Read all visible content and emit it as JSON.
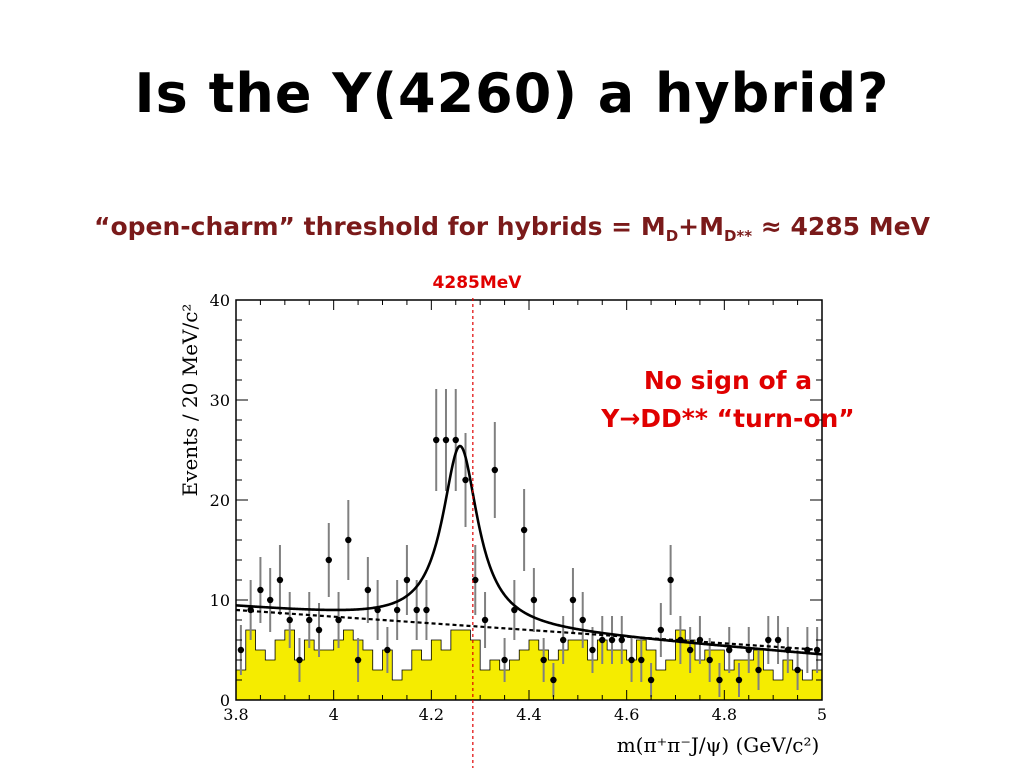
{
  "slide": {
    "title": "Is the Y(4260) a hybrid?",
    "subtitle_prefix": "“open-charm” threshold for hybrids = M",
    "subtitle_sub1": "D",
    "subtitle_mid": "+M",
    "subtitle_sub2": "D**",
    "subtitle_suffix": " ≈ 4285 MeV",
    "threshold_label": "4285MeV",
    "note_line1": "No sign of a",
    "note_line2": "Y→DD** “turn-on”"
  },
  "colors": {
    "threshold": "#e00000",
    "histogram_fill": "#f5ec00",
    "title_subtitle": "#7a1a1a",
    "errorbar": "#808080"
  },
  "chart_data": {
    "type": "scatter",
    "xlabel": "m(π⁺π⁻J/ψ) (GeV/c²)",
    "ylabel": "Events / 20 MeV/c²",
    "xlim": [
      3.8,
      5.0
    ],
    "ylim": [
      0,
      40
    ],
    "x_ticks": [
      "3.8",
      "4",
      "4.2",
      "4.4",
      "4.6",
      "4.8",
      "5"
    ],
    "y_ticks": [
      "0",
      "10",
      "20",
      "30",
      "40"
    ],
    "threshold_x": 4.285,
    "series": [
      {
        "kind": "data_points_with_errors",
        "points": [
          {
            "x": 3.81,
            "y": 5,
            "e": 2.5
          },
          {
            "x": 3.83,
            "y": 9,
            "e": 3
          },
          {
            "x": 3.85,
            "y": 11,
            "e": 3.3
          },
          {
            "x": 3.87,
            "y": 10,
            "e": 3.2
          },
          {
            "x": 3.89,
            "y": 12,
            "e": 3.5
          },
          {
            "x": 3.91,
            "y": 8,
            "e": 2.8
          },
          {
            "x": 3.93,
            "y": 4,
            "e": 2.2
          },
          {
            "x": 3.95,
            "y": 8,
            "e": 2.8
          },
          {
            "x": 3.97,
            "y": 7,
            "e": 2.7
          },
          {
            "x": 3.99,
            "y": 14,
            "e": 3.7
          },
          {
            "x": 4.01,
            "y": 8,
            "e": 2.8
          },
          {
            "x": 4.03,
            "y": 16,
            "e": 4
          },
          {
            "x": 4.05,
            "y": 4,
            "e": 2.2
          },
          {
            "x": 4.07,
            "y": 11,
            "e": 3.3
          },
          {
            "x": 4.09,
            "y": 9,
            "e": 3
          },
          {
            "x": 4.11,
            "y": 5,
            "e": 2.3
          },
          {
            "x": 4.13,
            "y": 9,
            "e": 3
          },
          {
            "x": 4.15,
            "y": 12,
            "e": 3.5
          },
          {
            "x": 4.17,
            "y": 9,
            "e": 3
          },
          {
            "x": 4.19,
            "y": 9,
            "e": 3
          },
          {
            "x": 4.21,
            "y": 26,
            "e": 5.1
          },
          {
            "x": 4.23,
            "y": 26,
            "e": 5.1
          },
          {
            "x": 4.25,
            "y": 26,
            "e": 5.1
          },
          {
            "x": 4.27,
            "y": 22,
            "e": 4.7
          },
          {
            "x": 4.29,
            "y": 12,
            "e": 3.5
          },
          {
            "x": 4.31,
            "y": 8,
            "e": 2.8
          },
          {
            "x": 4.33,
            "y": 23,
            "e": 4.8
          },
          {
            "x": 4.35,
            "y": 4,
            "e": 2.2
          },
          {
            "x": 4.37,
            "y": 9,
            "e": 3
          },
          {
            "x": 4.39,
            "y": 17,
            "e": 4.1
          },
          {
            "x": 4.41,
            "y": 10,
            "e": 3.2
          },
          {
            "x": 4.43,
            "y": 4,
            "e": 2.2
          },
          {
            "x": 4.45,
            "y": 2,
            "e": 1.7
          },
          {
            "x": 4.47,
            "y": 6,
            "e": 2.4
          },
          {
            "x": 4.49,
            "y": 10,
            "e": 3.2
          },
          {
            "x": 4.51,
            "y": 8,
            "e": 2.8
          },
          {
            "x": 4.53,
            "y": 5,
            "e": 2.3
          },
          {
            "x": 4.55,
            "y": 6,
            "e": 2.4
          },
          {
            "x": 4.57,
            "y": 6,
            "e": 2.4
          },
          {
            "x": 4.59,
            "y": 6,
            "e": 2.4
          },
          {
            "x": 4.61,
            "y": 4,
            "e": 2.2
          },
          {
            "x": 4.63,
            "y": 4,
            "e": 2.2
          },
          {
            "x": 4.65,
            "y": 2,
            "e": 1.7
          },
          {
            "x": 4.67,
            "y": 7,
            "e": 2.7
          },
          {
            "x": 4.69,
            "y": 12,
            "e": 3.5
          },
          {
            "x": 4.71,
            "y": 6,
            "e": 2.4
          },
          {
            "x": 4.73,
            "y": 5,
            "e": 2.3
          },
          {
            "x": 4.75,
            "y": 6,
            "e": 2.4
          },
          {
            "x": 4.77,
            "y": 4,
            "e": 2.2
          },
          {
            "x": 4.79,
            "y": 2,
            "e": 1.7
          },
          {
            "x": 4.81,
            "y": 5,
            "e": 2.3
          },
          {
            "x": 4.83,
            "y": 2,
            "e": 1.7
          },
          {
            "x": 4.85,
            "y": 5,
            "e": 2.3
          },
          {
            "x": 4.87,
            "y": 3,
            "e": 2
          },
          {
            "x": 4.89,
            "y": 6,
            "e": 2.4
          },
          {
            "x": 4.91,
            "y": 6,
            "e": 2.4
          },
          {
            "x": 4.93,
            "y": 5,
            "e": 2.3
          },
          {
            "x": 4.95,
            "y": 3,
            "e": 2
          },
          {
            "x": 4.97,
            "y": 5,
            "e": 2.3
          },
          {
            "x": 4.99,
            "y": 5,
            "e": 2.3
          }
        ]
      },
      {
        "kind": "sideband_histogram",
        "bin_width": 0.02,
        "values": [
          3,
          7,
          5,
          4,
          6,
          7,
          4,
          6,
          5,
          5,
          6,
          7,
          6,
          5,
          3,
          5,
          2,
          3,
          5,
          4,
          6,
          5,
          7,
          7,
          6,
          3,
          4,
          3,
          4,
          5,
          6,
          5,
          4,
          5,
          6,
          6,
          4,
          6,
          5,
          5,
          4,
          6,
          5,
          3,
          4,
          7,
          6,
          4,
          5,
          5,
          3,
          4,
          4,
          5,
          3,
          2,
          4,
          3,
          2,
          3
        ]
      },
      {
        "kind": "fit_curve",
        "peak_x": 4.259,
        "peak_y": 25.4,
        "width": 0.088,
        "background": [
          [
            3.8,
            9.3
          ],
          [
            5.0,
            4.5
          ]
        ]
      },
      {
        "kind": "background_line_dashed",
        "points": [
          [
            3.8,
            9.0
          ],
          [
            5.0,
            5.0
          ]
        ]
      }
    ]
  }
}
